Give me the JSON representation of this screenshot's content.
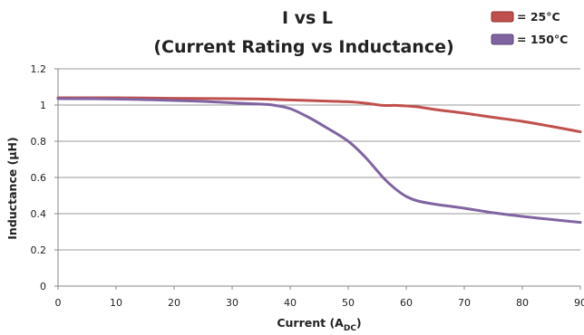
{
  "chart_data": {
    "type": "line",
    "title_line1": "I vs L",
    "title_line2": "(Current Rating vs Inductance)",
    "xlabel_main": "Current (A",
    "xlabel_sub": "DC",
    "xlabel_end": ")",
    "ylabel": "Inductance (µH)",
    "xlim": [
      0,
      90
    ],
    "ylim": [
      0,
      1.2
    ],
    "x_ticks": [
      "0",
      "10",
      "20",
      "30",
      "40",
      "50",
      "60",
      "70",
      "80",
      "90"
    ],
    "y_ticks": [
      "0",
      "0.2",
      "0.4",
      "0.6",
      "0.8",
      "1",
      "1.2"
    ],
    "grid": true,
    "legend_position": "top-right",
    "series": [
      {
        "name": "= 25°C",
        "color": "#c0504d",
        "x": [
          0,
          10,
          20,
          30,
          35,
          40,
          45,
          50,
          53,
          56,
          58,
          60,
          62,
          65,
          70,
          75,
          80,
          85,
          90
        ],
        "y": [
          1.04,
          1.04,
          1.037,
          1.035,
          1.033,
          1.028,
          1.023,
          1.018,
          1.01,
          0.998,
          0.998,
          0.995,
          0.99,
          0.975,
          0.955,
          0.932,
          0.91,
          0.882,
          0.852
        ]
      },
      {
        "name": "= 150°C",
        "color": "#8064a2",
        "x": [
          0,
          10,
          20,
          25,
          30,
          35,
          37,
          40,
          43,
          46,
          50,
          53,
          56,
          58,
          60,
          62,
          65,
          70,
          75,
          80,
          85,
          90
        ],
        "y": [
          1.035,
          1.033,
          1.025,
          1.02,
          1.012,
          1.005,
          1.0,
          0.98,
          0.935,
          0.88,
          0.8,
          0.71,
          0.6,
          0.54,
          0.495,
          0.47,
          0.452,
          0.43,
          0.405,
          0.385,
          0.368,
          0.352
        ]
      }
    ]
  }
}
